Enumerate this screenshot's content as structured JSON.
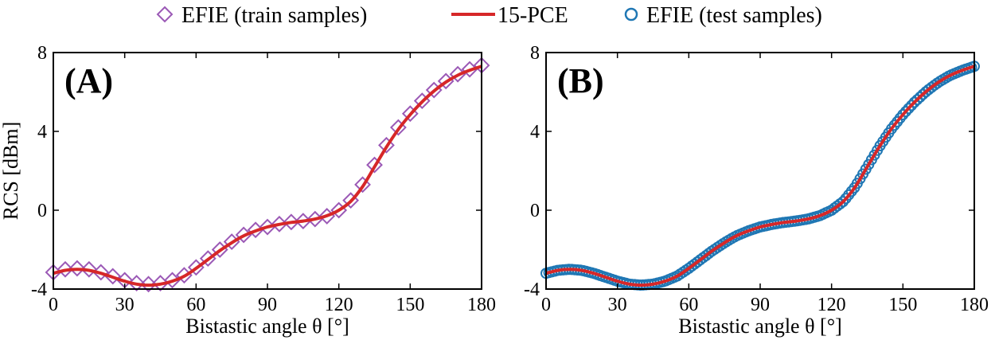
{
  "legend": {
    "items": [
      {
        "label": "EFIE (train samples)",
        "marker": "diamond",
        "color": "#9b59b6"
      },
      {
        "label": "15-PCE",
        "marker": "line",
        "color": "#d62728"
      },
      {
        "label": "EFIE (test samples)",
        "marker": "circle",
        "color": "#1f77b4"
      }
    ]
  },
  "chart_data": [
    {
      "type": "line",
      "panel_label": "(A)",
      "xlabel": "Bistastic angle θ  [°]",
      "ylabel": "RCS [dBm]",
      "xlim": [
        0,
        180
      ],
      "ylim": [
        -4,
        8
      ],
      "xticks": [
        0,
        30,
        60,
        90,
        120,
        150,
        180
      ],
      "yticks": [
        -4,
        0,
        4,
        8
      ],
      "series": [
        {
          "name": "EFIE (train samples)",
          "style": "scatter",
          "marker": "diamond",
          "color": "#9b59b6",
          "x": [
            0,
            5,
            10,
            15,
            20,
            25,
            30,
            35,
            40,
            45,
            50,
            55,
            60,
            65,
            70,
            75,
            80,
            85,
            90,
            95,
            100,
            105,
            110,
            115,
            120,
            125,
            130,
            135,
            140,
            145,
            150,
            155,
            160,
            165,
            170,
            175,
            180
          ],
          "y": [
            -3.15,
            -3.0,
            -2.95,
            -3.0,
            -3.15,
            -3.35,
            -3.55,
            -3.7,
            -3.75,
            -3.7,
            -3.55,
            -3.3,
            -2.9,
            -2.45,
            -2.0,
            -1.6,
            -1.25,
            -1.0,
            -0.85,
            -0.7,
            -0.6,
            -0.55,
            -0.45,
            -0.3,
            0.0,
            0.5,
            1.3,
            2.3,
            3.3,
            4.2,
            4.9,
            5.55,
            6.1,
            6.55,
            6.9,
            7.15,
            7.35
          ]
        },
        {
          "name": "15-PCE",
          "style": "line",
          "color": "#d62728",
          "x": [
            0,
            5,
            10,
            15,
            20,
            25,
            30,
            35,
            40,
            45,
            50,
            55,
            60,
            65,
            70,
            75,
            80,
            85,
            90,
            95,
            100,
            105,
            110,
            115,
            120,
            125,
            130,
            135,
            140,
            145,
            150,
            155,
            160,
            165,
            170,
            175,
            180
          ],
          "y": [
            -3.2,
            -3.05,
            -3.0,
            -3.05,
            -3.2,
            -3.4,
            -3.6,
            -3.75,
            -3.8,
            -3.75,
            -3.6,
            -3.35,
            -2.95,
            -2.5,
            -2.05,
            -1.65,
            -1.3,
            -1.05,
            -0.85,
            -0.72,
            -0.62,
            -0.55,
            -0.45,
            -0.28,
            0.0,
            0.45,
            1.2,
            2.2,
            3.2,
            4.1,
            4.85,
            5.5,
            6.05,
            6.5,
            6.85,
            7.1,
            7.3
          ]
        }
      ]
    },
    {
      "type": "line",
      "panel_label": "(B)",
      "xlabel": "Bistastic angle θ  [°]",
      "ylabel": "",
      "xlim": [
        0,
        180
      ],
      "ylim": [
        -4,
        8
      ],
      "xticks": [
        0,
        30,
        60,
        90,
        120,
        150,
        180
      ],
      "yticks": [
        -4,
        0,
        4,
        8
      ],
      "series": [
        {
          "name": "EFIE (test samples)",
          "style": "scatter",
          "marker": "circle",
          "color": "#1f77b4",
          "x": [
            0,
            5,
            10,
            15,
            20,
            25,
            30,
            35,
            40,
            45,
            50,
            55,
            60,
            65,
            70,
            75,
            80,
            85,
            90,
            95,
            100,
            105,
            110,
            115,
            120,
            125,
            130,
            135,
            140,
            145,
            150,
            155,
            160,
            165,
            170,
            175,
            180
          ],
          "y": [
            -3.2,
            -3.05,
            -3.0,
            -3.05,
            -3.2,
            -3.4,
            -3.6,
            -3.75,
            -3.8,
            -3.75,
            -3.6,
            -3.35,
            -2.95,
            -2.5,
            -2.05,
            -1.65,
            -1.3,
            -1.05,
            -0.85,
            -0.72,
            -0.62,
            -0.55,
            -0.45,
            -0.28,
            0.0,
            0.45,
            1.2,
            2.2,
            3.2,
            4.1,
            4.85,
            5.5,
            6.05,
            6.5,
            6.85,
            7.1,
            7.3
          ]
        },
        {
          "name": "15-PCE",
          "style": "line",
          "color": "#d62728",
          "x": [
            0,
            5,
            10,
            15,
            20,
            25,
            30,
            35,
            40,
            45,
            50,
            55,
            60,
            65,
            70,
            75,
            80,
            85,
            90,
            95,
            100,
            105,
            110,
            115,
            120,
            125,
            130,
            135,
            140,
            145,
            150,
            155,
            160,
            165,
            170,
            175,
            180
          ],
          "y": [
            -3.2,
            -3.05,
            -3.0,
            -3.05,
            -3.2,
            -3.4,
            -3.6,
            -3.75,
            -3.8,
            -3.75,
            -3.6,
            -3.35,
            -2.95,
            -2.5,
            -2.05,
            -1.65,
            -1.3,
            -1.05,
            -0.85,
            -0.72,
            -0.62,
            -0.55,
            -0.45,
            -0.28,
            0.0,
            0.45,
            1.2,
            2.2,
            3.2,
            4.1,
            4.85,
            5.5,
            6.05,
            6.5,
            6.85,
            7.1,
            7.3
          ]
        }
      ]
    }
  ]
}
